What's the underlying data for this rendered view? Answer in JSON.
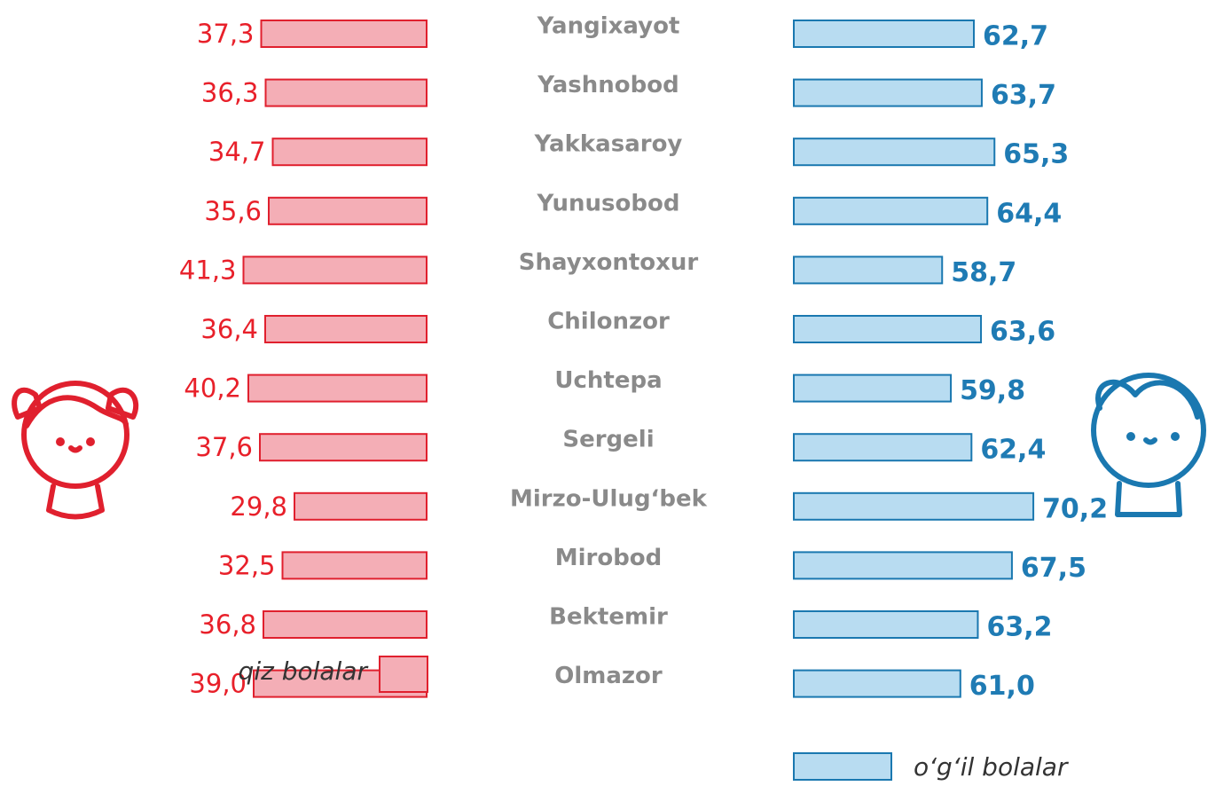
{
  "chart_data": {
    "type": "butterfly_bar",
    "categories": [
      "Yangixayot",
      "Yashnobod",
      "Yakkasaroy",
      "Yunusobod",
      "Shayxontoxur",
      "Chilonzor",
      "Uchtepa",
      "Sergeli",
      "Mirzo-Ulug‘bek",
      "Mirobod",
      "Bektemir",
      "Olmazor"
    ],
    "series": [
      {
        "name": "qiz bolalar",
        "color": "#f4aeb6",
        "edge_color": "#e0202e",
        "label_color": "#e8202a",
        "xlim": [
          0,
          50
        ],
        "values": [
          37.3,
          36.3,
          34.7,
          35.6,
          41.3,
          36.4,
          40.2,
          37.6,
          29.8,
          32.5,
          36.8,
          39.0
        ],
        "value_labels": [
          "37,3",
          "36,3",
          "34,7",
          "35,6",
          "41,3",
          "36,4",
          "40,2",
          "37,6",
          "29,8",
          "32,5",
          "36,8",
          "39,0"
        ]
      },
      {
        "name": "o‘g‘il bolalar",
        "color": "#b8dcf1",
        "edge_color": "#1a78b0",
        "label_color": "#1f7bb4",
        "xlim": [
          40,
          75
        ],
        "values": [
          62.7,
          63.7,
          65.3,
          64.4,
          58.7,
          63.6,
          59.8,
          62.4,
          70.2,
          67.5,
          63.2,
          61.0
        ],
        "value_labels": [
          "62,7",
          "63,7",
          "65,3",
          "64,4",
          "58,7",
          "63,6",
          "59,8",
          "62,4",
          "70,2",
          "67,5",
          "63,2",
          "61,0"
        ]
      }
    ]
  }
}
